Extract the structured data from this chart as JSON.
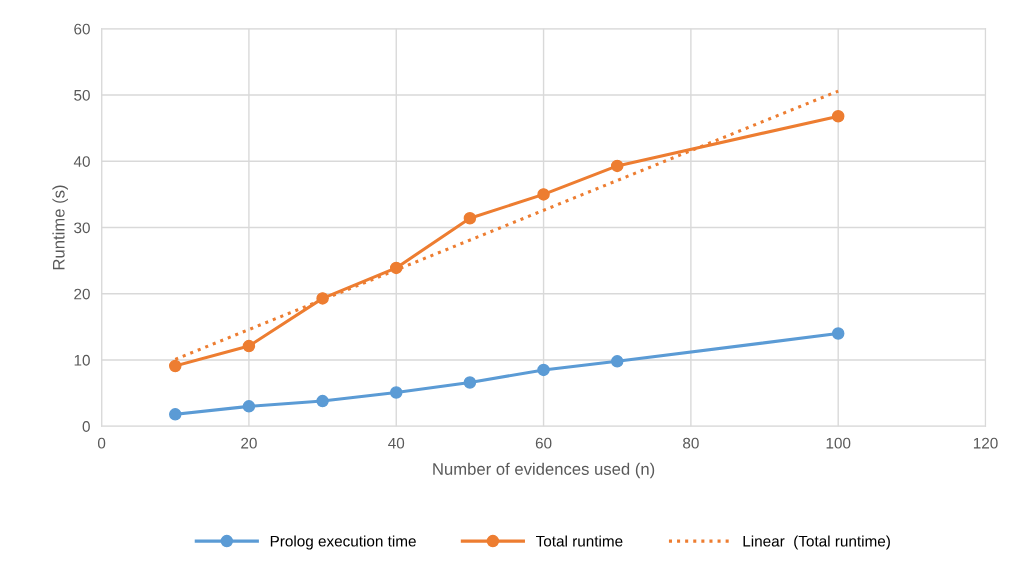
{
  "chart_data": {
    "type": "line",
    "xlabel": "Number of evidences used (n)",
    "ylabel": "Runtime (s)",
    "x": [
      10,
      20,
      30,
      40,
      50,
      60,
      70,
      100
    ],
    "series": [
      {
        "name": "Prolog execution time",
        "color": "#5b9bd5",
        "values": [
          1.8,
          3.0,
          3.8,
          5.1,
          6.6,
          8.5,
          9.8,
          14.0
        ],
        "marker": "circle"
      },
      {
        "name": "Total runtime",
        "color": "#ed7d31",
        "values": [
          9.1,
          12.1,
          19.3,
          23.9,
          31.4,
          35.0,
          39.3,
          46.8
        ],
        "marker": "circle"
      },
      {
        "name": "Linear  (Total runtime)",
        "color": "#ed7d31",
        "x": [
          10,
          100
        ],
        "values": [
          10.1,
          50.6
        ],
        "marker": "none",
        "line_style": "dotted"
      }
    ],
    "xlim": [
      0,
      120
    ],
    "xticks": [
      0,
      20,
      40,
      60,
      80,
      100,
      120
    ],
    "ylim": [
      0,
      60
    ],
    "yticks": [
      0,
      10,
      20,
      30,
      40,
      50,
      60
    ],
    "grid": true,
    "legend": "bottom"
  }
}
